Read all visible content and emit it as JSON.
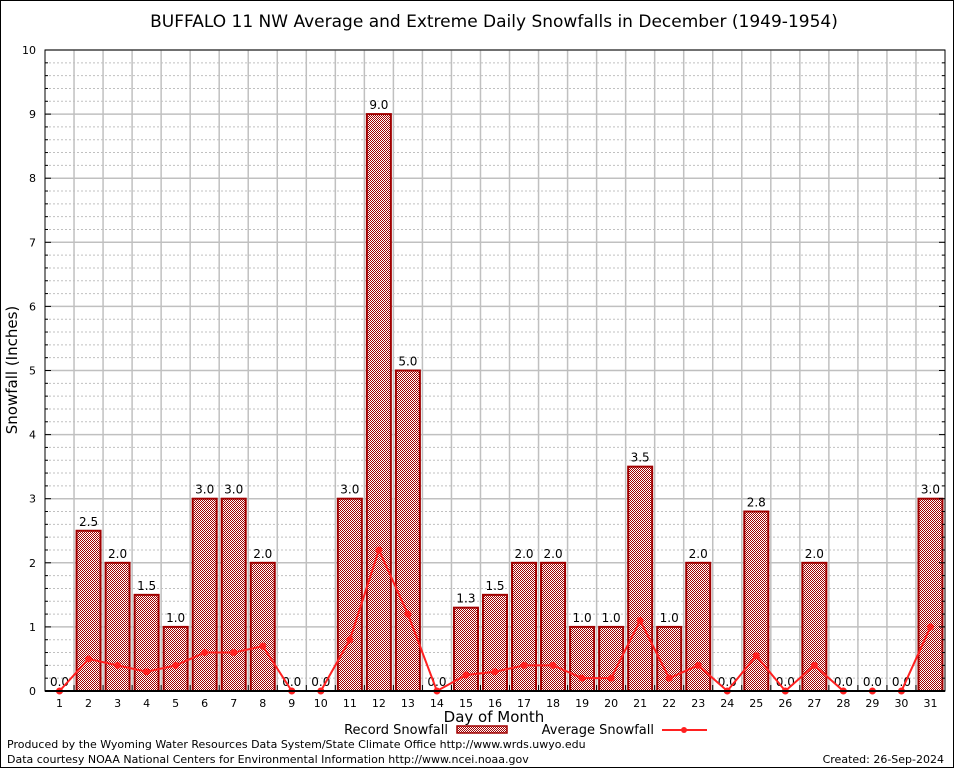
{
  "chart_data": {
    "type": "bar",
    "title": "BUFFALO 11 NW Average and Extreme Daily Snowfalls in December (1949-1954)",
    "xlabel": "Day of Month",
    "ylabel": "Snowfall (Inches)",
    "ylim": [
      0,
      10
    ],
    "yticks": [
      "0",
      "1",
      "2",
      "3",
      "4",
      "5",
      "6",
      "7",
      "8",
      "9",
      "10"
    ],
    "categories": [
      "1",
      "2",
      "3",
      "4",
      "5",
      "6",
      "7",
      "8",
      "9",
      "10",
      "11",
      "12",
      "13",
      "14",
      "15",
      "16",
      "17",
      "18",
      "19",
      "20",
      "21",
      "22",
      "23",
      "24",
      "25",
      "26",
      "27",
      "28",
      "29",
      "30",
      "31"
    ],
    "series": [
      {
        "name": "Record Snowfall",
        "type": "bar",
        "color": "#a00000",
        "values": [
          0.0,
          2.5,
          2.0,
          1.5,
          1.0,
          3.0,
          3.0,
          2.0,
          0.0,
          0.0,
          3.0,
          9.0,
          5.0,
          0.0,
          1.3,
          1.5,
          2.0,
          2.0,
          1.0,
          1.0,
          3.5,
          1.0,
          2.0,
          0.0,
          2.8,
          0.0,
          2.0,
          0.0,
          0.0,
          0.0,
          3.0
        ],
        "labels": [
          "0.0",
          "2.5",
          "2.0",
          "1.5",
          "1.0",
          "3.0",
          "3.0",
          "2.0",
          "0.0",
          "0.0",
          "3.0",
          "9.0",
          "5.0",
          "0.0",
          "1.3",
          "1.5",
          "2.0",
          "2.0",
          "1.0",
          "1.0",
          "3.5",
          "1.0",
          "2.0",
          "0.0",
          "2.8",
          "0.0",
          "2.0",
          "0.0",
          "0.0",
          "0.0",
          "3.0"
        ]
      },
      {
        "name": "Average Snowfall",
        "type": "line",
        "color": "#ff2020",
        "values": [
          0.0,
          0.5,
          0.4,
          0.3,
          0.4,
          0.6,
          0.6,
          0.7,
          0.0,
          0.0,
          0.8,
          2.2,
          1.2,
          0.0,
          0.25,
          0.3,
          0.4,
          0.4,
          0.2,
          0.2,
          1.1,
          0.2,
          0.4,
          0.0,
          0.55,
          0.0,
          0.4,
          0.0,
          0.0,
          0.0,
          1.0
        ]
      }
    ],
    "grid": true,
    "legend": "bottom"
  },
  "footer": {
    "line1": "Produced by the Wyoming Water Resources Data System/State Climate Office http://www.wrds.uwyo.edu",
    "line2": "Data courtesy NOAA National Centers for Environmental Information http://www.ncei.noaa.gov",
    "created": "Created: 26-Sep-2024"
  }
}
